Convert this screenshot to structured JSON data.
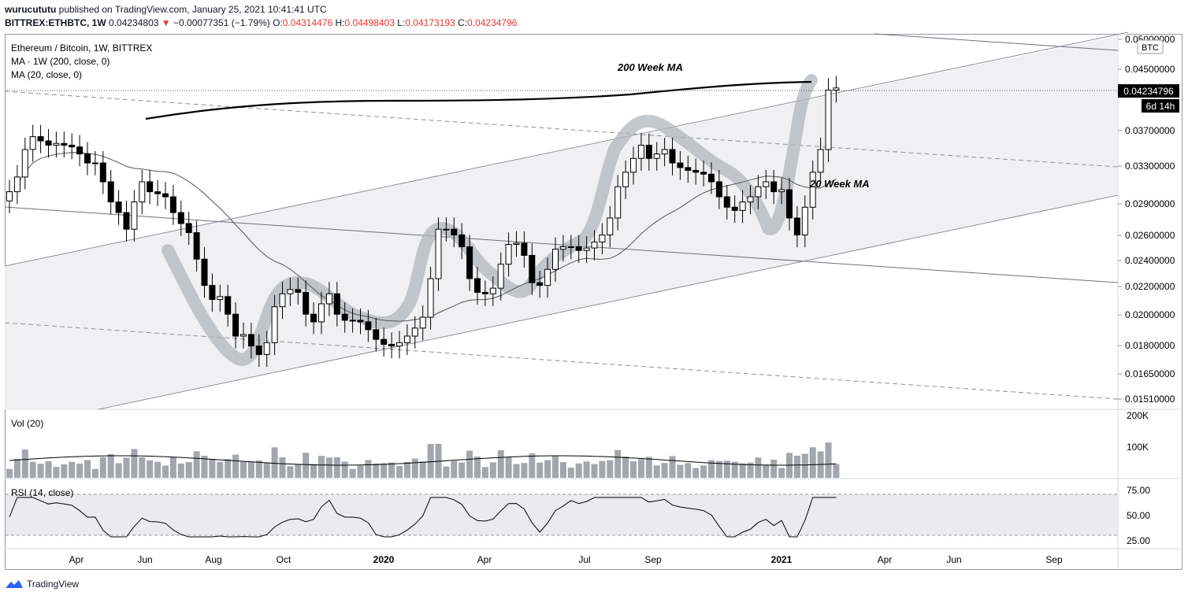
{
  "header": {
    "publisher": "wurucututu",
    "published_text": "published on TradingView.com, January 25, 2021 10:41:41 UTC",
    "symbol": "BITTREX:ETHBTC, 1W",
    "last": "0.04234803",
    "change_arrow": "▼",
    "change": "−0.00077351 (−1.79%)",
    "o_label": "O:",
    "o": "0.04314476",
    "h_label": "H:",
    "h": "0.04498403",
    "l_label": "L:",
    "l": "0.04173193",
    "c_label": "C:",
    "c": "0.04234796"
  },
  "legend": {
    "title": "Ethereum / Bitcoin, 1W, BITTREX",
    "ma1": "MA · 1W (200, close, 0)",
    "ma2": "MA (20, close, 0)",
    "vol": "Vol (20)",
    "rsi": "RSI (14, close)"
  },
  "annotations": {
    "ma200": "200 Week MA",
    "ma20": "20 Week MA"
  },
  "price_scale": {
    "currency": "BTC",
    "ticks": [
      "0.05000000",
      "0.04500000",
      "0.03700000",
      "0.03300000",
      "0.02900000",
      "0.02600000",
      "0.02400000",
      "0.02200000",
      "0.02000000",
      "0.01800000",
      "0.01650000",
      "0.01510000"
    ],
    "last_price_label": "0.04234796",
    "countdown": "6d 14h"
  },
  "volume_scale": {
    "ticks": [
      "200K",
      "100K"
    ]
  },
  "rsi_scale": {
    "ticks": [
      "75.00",
      "50.00",
      "25.00"
    ]
  },
  "time_axis": {
    "labels": [
      "Apr",
      "Jun",
      "Aug",
      "Oct",
      "2020",
      "Apr",
      "Jul",
      "Sep",
      "2021",
      "Apr",
      "Jun",
      "Sep"
    ]
  },
  "colors": {
    "up": "#ffffff",
    "down": "#000000",
    "volume": "#a3a6ad",
    "channel": "#f0f0f2",
    "rsi_band": "#ebebee"
  },
  "chart_data": {
    "type": "candlestick",
    "interval": "1W",
    "ylim": [
      0.015,
      0.051
    ],
    "y_scale": "log",
    "candles_close": [
      0.03,
      0.0315,
      0.0345,
      0.036,
      0.0355,
      0.035,
      0.0352,
      0.035,
      0.0348,
      0.034,
      0.033,
      0.033,
      0.031,
      0.029,
      0.028,
      0.0265,
      0.029,
      0.031,
      0.03,
      0.0298,
      0.0295,
      0.028,
      0.027,
      0.0262,
      0.024,
      0.022,
      0.021,
      0.0212,
      0.02,
      0.0186,
      0.0187,
      0.018,
      0.0175,
      0.0182,
      0.0205,
      0.0214,
      0.0217,
      0.0215,
      0.02,
      0.0195,
      0.0207,
      0.0214,
      0.02,
      0.0196,
      0.0196,
      0.0195,
      0.019,
      0.0184,
      0.0181,
      0.018,
      0.0182,
      0.0186,
      0.0191,
      0.0198,
      0.0225,
      0.0265,
      0.0265,
      0.026,
      0.025,
      0.0225,
      0.0215,
      0.0214,
      0.0218,
      0.0236,
      0.0252,
      0.0253,
      0.0243,
      0.0222,
      0.022,
      0.0232,
      0.0248,
      0.025,
      0.025,
      0.0247,
      0.0249,
      0.0254,
      0.026,
      0.0275,
      0.0305,
      0.032,
      0.0335,
      0.035,
      0.0335,
      0.034,
      0.0345,
      0.033,
      0.0325,
      0.0322,
      0.032,
      0.0318,
      0.031,
      0.0295,
      0.0285,
      0.0282,
      0.029,
      0.0295,
      0.0305,
      0.031,
      0.03,
      0.0302,
      0.0275,
      0.026,
      0.0285,
      0.032,
      0.0345,
      0.042,
      0.0423
    ],
    "ma200_level": 0.0426
  }
}
